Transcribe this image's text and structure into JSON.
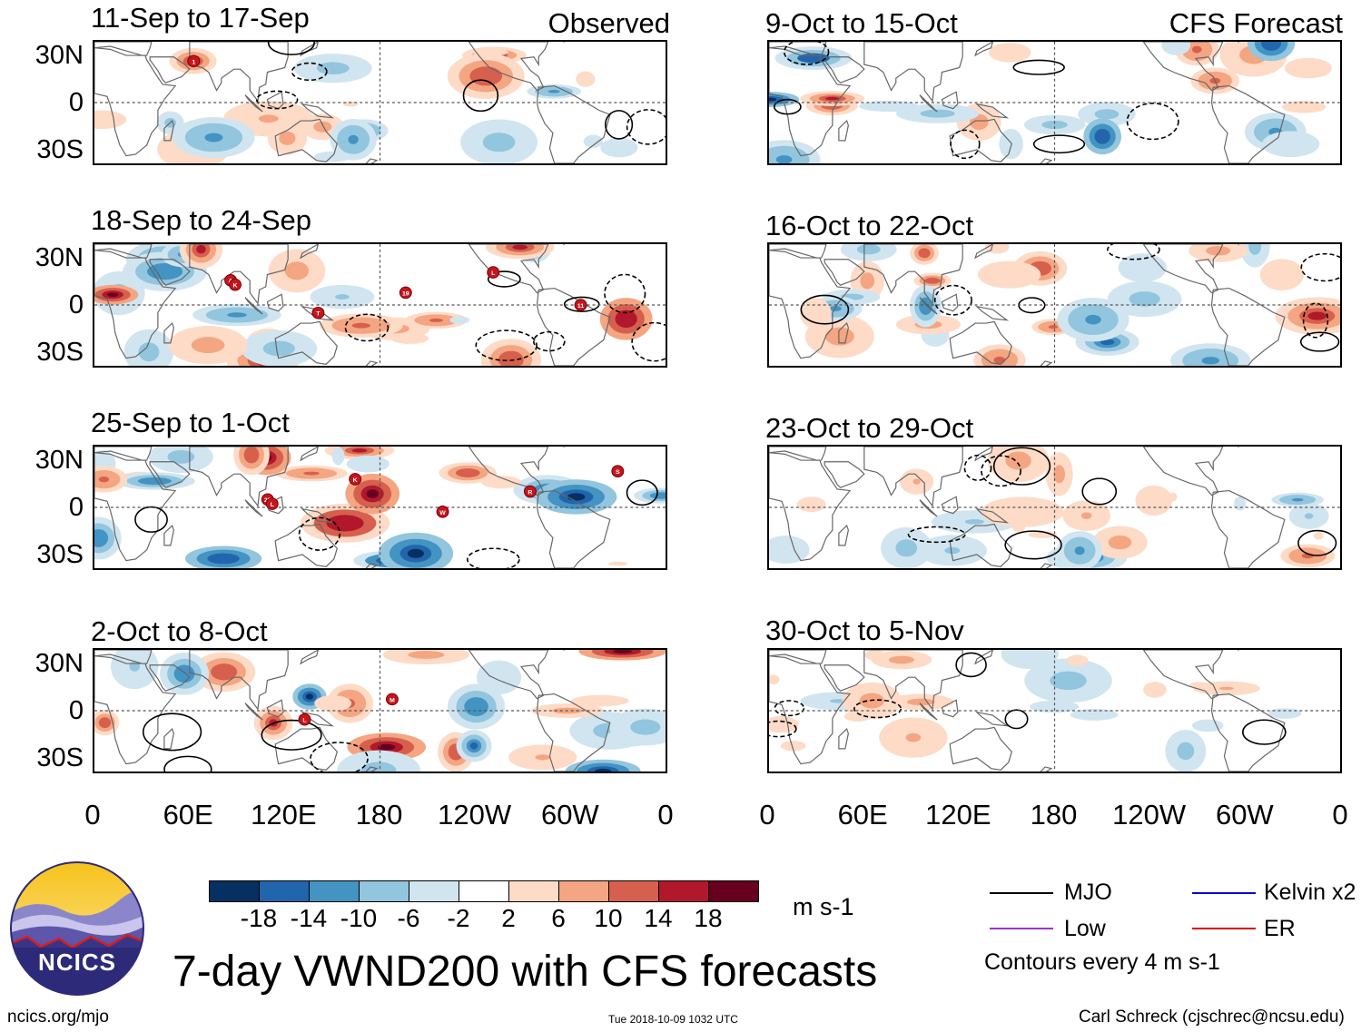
{
  "chart_data": {
    "type": "heatmap",
    "title": "7-day VWND200 with CFS forecasts",
    "variable": "VWND200",
    "units": "m s-1",
    "x_ticks": [
      "0",
      "60E",
      "120E",
      "180",
      "120W",
      "60W",
      "0"
    ],
    "x_range_deg": [
      0,
      360
    ],
    "y_ticks": [
      "30N",
      "0",
      "30S"
    ],
    "y_range_deg": [
      -40,
      40
    ],
    "columns": [
      {
        "label": "Observed",
        "panels": [
          "11-Sep to 17-Sep",
          "18-Sep to 24-Sep",
          "25-Sep to 1-Oct",
          "2-Oct to 8-Oct"
        ]
      },
      {
        "label": "CFS Forecast",
        "panels": [
          "9-Oct to 15-Oct",
          "16-Oct to 22-Oct",
          "23-Oct to 29-Oct",
          "30-Oct to 5-Nov"
        ]
      }
    ],
    "colorbar": {
      "ticks": [
        "-18",
        "-14",
        "-10",
        "-6",
        "-2",
        "2",
        "6",
        "10",
        "14",
        "18"
      ],
      "colors": [
        "#053061",
        "#2166ac",
        "#4393c3",
        "#92c5de",
        "#d1e5f0",
        "#ffffff",
        "#fddbc7",
        "#f4a582",
        "#d6604d",
        "#b2182b",
        "#67001f"
      ]
    },
    "legend": [
      {
        "label": "MJO",
        "color": "#000000"
      },
      {
        "label": "Kelvin x2",
        "color": "#0000cc"
      },
      {
        "label": "Low",
        "color": "#9933cc"
      },
      {
        "label": "ER",
        "color": "#dd0000"
      }
    ],
    "contour_note": "Contours every 4 m s-1",
    "storms": [
      [
        "1"
      ],
      [
        "A",
        "T",
        "19",
        "L",
        "11",
        "K"
      ],
      [
        "29",
        "K",
        "W",
        "R",
        "S",
        "L"
      ],
      [
        "L",
        "M"
      ]
    ]
  },
  "footer": {
    "org_logo_text": "NCICS",
    "url": "ncics.org/mjo",
    "timestamp": "Tue 2018-10-09 1032 UTC",
    "credit": "Carl Schreck (cjschrec@ncsu.edu)"
  }
}
